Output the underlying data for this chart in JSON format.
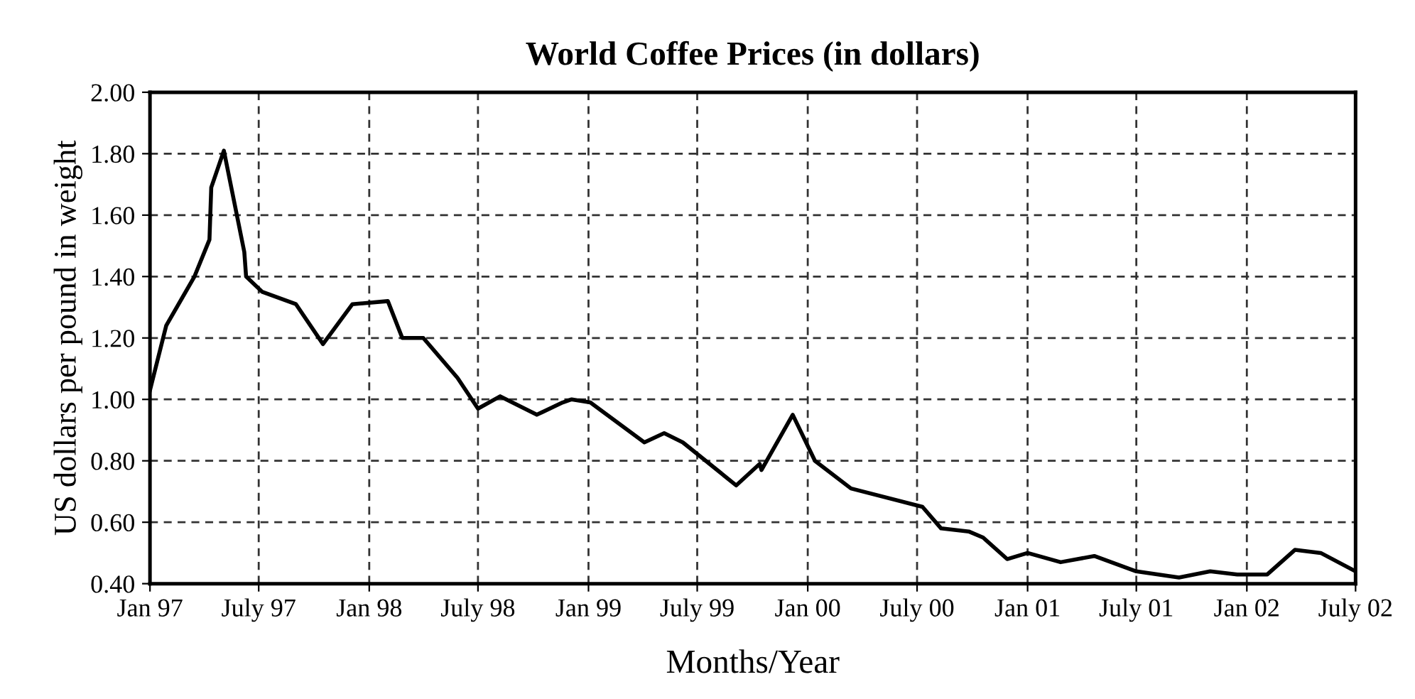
{
  "chart_data": {
    "type": "line",
    "title": "World Coffee Prices (in dollars)",
    "xlabel": "Months/Year",
    "ylabel": "US dollars per pound in weight",
    "x": [
      "1997-01-01",
      "1997-01-28",
      "1997-03-16",
      "1997-04-10",
      "1997-04-13",
      "1997-05-04",
      "1997-06-07",
      "1997-06-10",
      "1997-07-07",
      "1997-09-01",
      "1997-10-16",
      "1997-12-04",
      "1998-02-01",
      "1998-02-25",
      "1998-04-01",
      "1998-05-28",
      "1998-07-01",
      "1998-08-07",
      "1998-10-07",
      "1998-11-19",
      "1998-12-04",
      "1999-01-04",
      "1999-04-04",
      "1999-05-07",
      "1999-06-07",
      "1999-09-04",
      "1999-10-13",
      "1999-10-16",
      "1999-12-07",
      "2000-01-13",
      "2000-03-13",
      "2000-07-10",
      "2000-08-10",
      "2000-09-25",
      "2000-10-19",
      "2000-11-28",
      "2001-01-01",
      "2001-02-25",
      "2001-04-22",
      "2001-07-01",
      "2001-09-10",
      "2001-11-01",
      "2001-12-16",
      "2002-02-04",
      "2002-03-22",
      "2002-05-04",
      "2002-07-01"
    ],
    "series": [
      {
        "color": "#000000",
        "values": [
          1.03,
          1.24,
          1.4,
          1.52,
          1.69,
          1.81,
          1.48,
          1.4,
          1.35,
          1.31,
          1.18,
          1.31,
          1.32,
          1.2,
          1.2,
          1.07,
          0.97,
          1.01,
          0.95,
          0.99,
          1.0,
          0.99,
          0.86,
          0.89,
          0.86,
          0.72,
          0.79,
          0.77,
          0.95,
          0.8,
          0.71,
          0.65,
          0.58,
          0.57,
          0.55,
          0.48,
          0.5,
          0.47,
          0.49,
          0.44,
          0.42,
          0.44,
          0.43,
          0.43,
          0.51,
          0.5,
          0.44
        ]
      }
    ],
    "xlim": [
      "1997-01-01",
      "2002-07-01"
    ],
    "xticks": [
      {
        "value": "1997-01-01",
        "label": "Jan 97"
      },
      {
        "value": "1997-07-01",
        "label": "July 97"
      },
      {
        "value": "1998-01-01",
        "label": "Jan 98"
      },
      {
        "value": "1998-07-01",
        "label": "July 98"
      },
      {
        "value": "1999-01-01",
        "label": "Jan 99"
      },
      {
        "value": "1999-07-01",
        "label": "July 99"
      },
      {
        "value": "2000-01-01",
        "label": "Jan 00"
      },
      {
        "value": "2000-07-01",
        "label": "July 00"
      },
      {
        "value": "2001-01-01",
        "label": "Jan 01"
      },
      {
        "value": "2001-07-01",
        "label": "July 01"
      },
      {
        "value": "2002-01-01",
        "label": "Jan 02"
      },
      {
        "value": "2002-07-01",
        "label": "July 02"
      }
    ],
    "ylim": [
      0.4,
      2.0
    ],
    "yticks": [
      {
        "value": 0.4,
        "label": "0.40"
      },
      {
        "value": 0.6,
        "label": "0.60"
      },
      {
        "value": 0.8,
        "label": "0.80"
      },
      {
        "value": 1.0,
        "label": "1.00"
      },
      {
        "value": 1.2,
        "label": "1.20"
      },
      {
        "value": 1.4,
        "label": "1.40"
      },
      {
        "value": 1.6,
        "label": "1.60"
      },
      {
        "value": 1.8,
        "label": "1.80"
      },
      {
        "value": 2.0,
        "label": "2.00"
      }
    ],
    "grid": true,
    "line_style": "solid"
  }
}
